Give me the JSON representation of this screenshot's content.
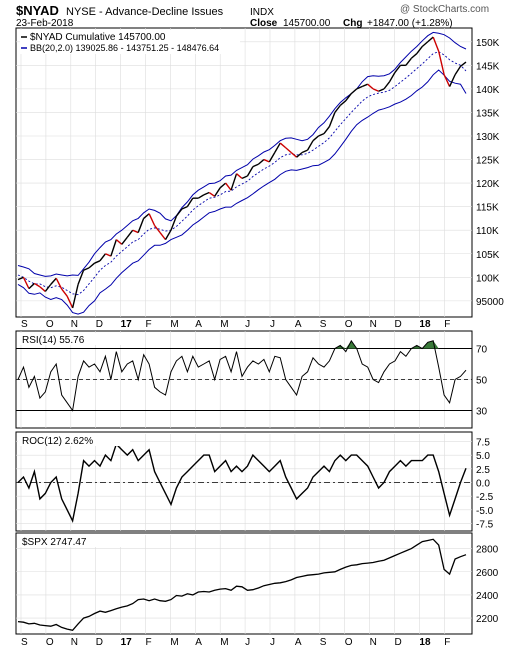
{
  "header": {
    "symbol": "$NYAD",
    "name": "NYSE - Advance-Decline Issues",
    "exchange": "INDX",
    "date": "23-Feb-2018",
    "close_label": "Close",
    "close_value": "145700.00",
    "chg_label": "Chg",
    "chg_value": "+1847.00 (+1.28%)",
    "watermark": "@ StockCharts.com"
  },
  "month_labels": [
    "S",
    "O",
    "N",
    "D",
    "17",
    "F",
    "M",
    "A",
    "M",
    "J",
    "J",
    "A",
    "S",
    "O",
    "N",
    "D",
    "18",
    "F"
  ],
  "colors": {
    "price_up": "#000000",
    "price_down": "#cc0000",
    "bollinger": "#0000aa",
    "rsi_fill": "#3a7a3a",
    "grid": "#dddddd",
    "panel_border": "#000000"
  },
  "chart_data": [
    {
      "panel": "main",
      "type": "line",
      "legend": [
        "$NYAD Cumulative 145700.00",
        "BB(20,2.0) 139025.86 - 143751.25 - 148476.64"
      ],
      "yticks": [
        "150K",
        "145K",
        "140K",
        "135K",
        "130K",
        "125K",
        "120K",
        "115K",
        "110K",
        "105K",
        "100K",
        "95000"
      ],
      "ylim": [
        92000,
        152500
      ],
      "months": [
        "S",
        "O",
        "N",
        "D",
        "17",
        "F",
        "M",
        "A",
        "M",
        "J",
        "J",
        "A",
        "S",
        "O",
        "N",
        "D",
        "18",
        "F"
      ],
      "series": [
        {
          "role": "price",
          "values": [
            99500,
            100000,
            97600,
            98700,
            98000,
            97000,
            98500,
            99800,
            97500,
            96000,
            93500,
            98500,
            101500,
            102000,
            103000,
            103500,
            105000,
            104500,
            108000,
            107000,
            108500,
            110000,
            109500,
            112500,
            113500,
            111000,
            109500,
            108000,
            110000,
            113000,
            114500,
            115000,
            116800,
            116800,
            117500,
            118000,
            117200,
            119000,
            120000,
            118500,
            122000,
            121000,
            121500,
            123500,
            124000,
            125000,
            124500,
            126500,
            128500,
            127500,
            126500,
            125500,
            126500,
            127000,
            129000,
            130000,
            130500,
            132000,
            135000,
            136500,
            137500,
            139000,
            140000,
            140500,
            141000,
            140000,
            139500,
            140000,
            141500,
            143500,
            145000,
            145000,
            146500,
            147500,
            149000,
            150000,
            151000,
            148000,
            143000,
            140500,
            143000,
            144800,
            145700
          ]
        },
        {
          "role": "bb-middle",
          "values": [
            100500,
            100000,
            99200,
            98600,
            98600,
            98000,
            97800,
            98200,
            97900,
            97200,
            96500,
            96300,
            97200,
            98600,
            100000,
            101500,
            102500,
            103200,
            104500,
            105500,
            106500,
            107500,
            108000,
            109200,
            110200,
            110500,
            110200,
            109800,
            110000,
            110800,
            111900,
            113000,
            114300,
            115200,
            116000,
            116800,
            117000,
            117500,
            118200,
            118300,
            119200,
            119800,
            120400,
            121400,
            122200,
            123000,
            123600,
            124400,
            125400,
            126000,
            126200,
            126000,
            126000,
            126300,
            127000,
            127800,
            128600,
            129600,
            131000,
            132400,
            133700,
            135000,
            136200,
            137400,
            138300,
            138800,
            139100,
            139300,
            139700,
            140500,
            141400,
            142300,
            143300,
            144300,
            145300,
            146400,
            147500,
            147900,
            147200,
            146200,
            145500,
            145000,
            143800
          ]
        },
        {
          "role": "bb-upper",
          "values": [
            102500,
            102200,
            101800,
            100800,
            100500,
            100200,
            100300,
            100700,
            100500,
            100300,
            100500,
            100400,
            101800,
            103200,
            105000,
            106300,
            107500,
            108000,
            109200,
            110000,
            111000,
            112000,
            112500,
            113700,
            114500,
            114200,
            113600,
            112400,
            112000,
            113100,
            114800,
            116000,
            117500,
            118500,
            119200,
            119900,
            120000,
            120500,
            121500,
            121700,
            122700,
            123300,
            123900,
            125100,
            125800,
            126600,
            127100,
            128000,
            129000,
            129500,
            129600,
            129300,
            129000,
            129300,
            130300,
            131800,
            132800,
            134200,
            135800,
            137100,
            138100,
            139000,
            140000,
            141500,
            142600,
            142800,
            142700,
            142800,
            143200,
            144200,
            145600,
            146800,
            148000,
            149000,
            150200,
            151300,
            152000,
            151800,
            151500,
            150800,
            149800,
            149000,
            148476
          ]
        },
        {
          "role": "bb-lower",
          "values": [
            98500,
            97800,
            96600,
            96400,
            96700,
            95800,
            95300,
            95700,
            95300,
            94100,
            92500,
            92200,
            92600,
            94000,
            95000,
            96700,
            97500,
            98400,
            99800,
            101000,
            102000,
            103000,
            103500,
            104700,
            105900,
            106800,
            106800,
            107200,
            108000,
            108500,
            109000,
            110000,
            111100,
            111900,
            112800,
            113700,
            114000,
            114500,
            114900,
            114900,
            115700,
            116300,
            116900,
            117700,
            118600,
            119400,
            120100,
            120800,
            121800,
            122500,
            122800,
            122700,
            123000,
            123300,
            123700,
            123800,
            124400,
            125000,
            126200,
            127700,
            129300,
            131000,
            132400,
            133300,
            134000,
            134800,
            135500,
            135800,
            136200,
            136800,
            137200,
            137800,
            138600,
            139600,
            140400,
            141500,
            143000,
            144000,
            142900,
            141600,
            141200,
            141000,
            139025
          ]
        }
      ]
    },
    {
      "panel": "rsi",
      "type": "line",
      "label": "RSI(14) 55.76",
      "yticks": [
        "70",
        "50",
        "30"
      ],
      "ylim": [
        20,
        80
      ],
      "reference_lines": [
        70,
        50,
        30
      ],
      "values": [
        50,
        58,
        45,
        52,
        38,
        42,
        55,
        60,
        40,
        35,
        30,
        52,
        62,
        58,
        60,
        55,
        65,
        50,
        68,
        55,
        60,
        62,
        50,
        66,
        60,
        45,
        42,
        40,
        55,
        62,
        65,
        55,
        65,
        58,
        60,
        62,
        50,
        63,
        65,
        55,
        68,
        52,
        58,
        62,
        60,
        63,
        55,
        65,
        64,
        50,
        45,
        40,
        52,
        55,
        64,
        60,
        58,
        62,
        70,
        72,
        68,
        75,
        70,
        60,
        58,
        50,
        48,
        55,
        60,
        62,
        68,
        65,
        70,
        72,
        70,
        74,
        75,
        58,
        40,
        35,
        50,
        52,
        56
      ]
    },
    {
      "panel": "roc",
      "type": "line",
      "label": "ROC(12) 2.62%",
      "yticks": [
        "7.5",
        "5.0",
        "2.5",
        "0.0",
        "-2.5",
        "-5.0",
        "-7.5"
      ],
      "ylim": [
        -8.5,
        8.5
      ],
      "reference_lines": [
        0
      ],
      "values": [
        0,
        1,
        -1,
        2,
        -3,
        -2,
        0,
        1,
        -3,
        -5,
        -7,
        -2,
        4,
        3,
        4,
        3,
        5,
        4,
        7,
        6,
        5,
        6,
        4,
        5,
        6,
        2,
        0,
        -2,
        -4,
        -1,
        1,
        2,
        3,
        4,
        5,
        5,
        2,
        3,
        4,
        2,
        3,
        2,
        3,
        5,
        4,
        3,
        2,
        3,
        4,
        1,
        -1,
        -3,
        -2,
        -1,
        1,
        2,
        3,
        2,
        4,
        5,
        4,
        5,
        5,
        4,
        3,
        1,
        -1,
        0,
        2,
        3,
        4,
        3,
        4,
        4,
        4,
        5,
        5,
        2,
        -2,
        -6,
        -3,
        0,
        2.62
      ]
    },
    {
      "panel": "spx",
      "type": "line",
      "label": "$SPX 2747.47",
      "yticks": [
        "2800",
        "2600",
        "2400",
        "2200"
      ],
      "ylim": [
        2080,
        2900
      ],
      "values": [
        2170,
        2165,
        2150,
        2155,
        2140,
        2135,
        2130,
        2145,
        2120,
        2105,
        2095,
        2150,
        2200,
        2215,
        2240,
        2260,
        2250,
        2265,
        2280,
        2295,
        2305,
        2325,
        2360,
        2365,
        2350,
        2365,
        2350,
        2345,
        2360,
        2395,
        2390,
        2410,
        2400,
        2425,
        2430,
        2425,
        2440,
        2450,
        2455,
        2440,
        2475,
        2470,
        2440,
        2445,
        2460,
        2480,
        2490,
        2500,
        2505,
        2515,
        2530,
        2550,
        2560,
        2570,
        2575,
        2580,
        2590,
        2595,
        2600,
        2620,
        2640,
        2655,
        2660,
        2670,
        2675,
        2680,
        2690,
        2700,
        2720,
        2740,
        2760,
        2780,
        2800,
        2830,
        2860,
        2870,
        2880,
        2830,
        2620,
        2580,
        2710,
        2730,
        2747
      ]
    }
  ]
}
